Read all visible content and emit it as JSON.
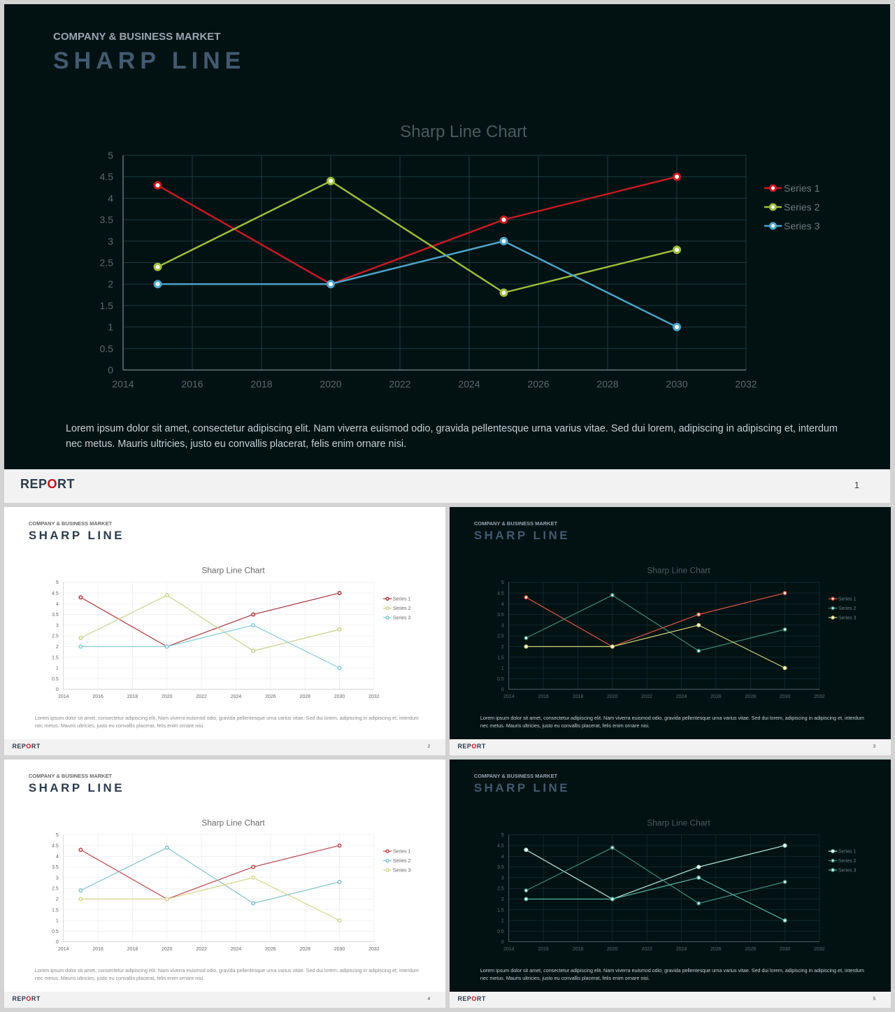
{
  "header": {
    "subtitle": "COMPANY & BUSINESS MARKET",
    "title": "SHARP LINE"
  },
  "description": "Lorem ipsum dolor sit amet, consectetur adipiscing elit. Nam viverra euismod odio, gravida pellentesque urna varius vitae. Sed dui lorem, adipiscing in adipiscing et, interdum nec metus. Mauris ultricies, justo eu convallis placerat, felis enim ornare nisi.",
  "footer": {
    "brand_before": "REP",
    "brand_accent": "O",
    "brand_after": "RT"
  },
  "slides": [
    {
      "page": "1",
      "theme": "dark",
      "line_colors": [
        "#cc1a22",
        "#9fbf3a",
        "#4fa6cc"
      ]
    },
    {
      "page": "2",
      "theme": "light",
      "line_colors": [
        "#a8333b",
        "#c8d18a",
        "#80cbd8"
      ]
    },
    {
      "page": "3",
      "theme": "dark",
      "line_colors": [
        "#e0584a",
        "#3f8c78",
        "#d4d47a"
      ]
    },
    {
      "page": "4",
      "theme": "light",
      "line_colors": [
        "#b8444c",
        "#7cc3cc",
        "#d4d48c"
      ]
    },
    {
      "page": "5",
      "theme": "dark",
      "line_colors": [
        "#b6f0e0",
        "#3e8c80",
        "#5ab8a8"
      ]
    }
  ],
  "chart_data": {
    "type": "line",
    "title": "Sharp Line Chart",
    "xlim": [
      2014,
      2032
    ],
    "ylim": [
      0,
      5
    ],
    "x_ticks": [
      "2014",
      "2016",
      "2018",
      "2020",
      "2022",
      "2024",
      "2026",
      "2028",
      "2030",
      "2032"
    ],
    "y_ticks": [
      "0",
      "0.5",
      "1",
      "1.5",
      "2",
      "2.5",
      "3",
      "3.5",
      "4",
      "4.5",
      "5"
    ],
    "grid": true,
    "legend": "right",
    "x": [
      2015,
      2020,
      2025,
      2030
    ],
    "series": [
      {
        "name": "Series 1",
        "values": [
          4.3,
          2,
          3.5,
          4.5
        ]
      },
      {
        "name": "Series 2",
        "values": [
          2.4,
          4.4,
          1.8,
          2.8
        ]
      },
      {
        "name": "Series 3",
        "values": [
          2,
          2,
          3,
          1
        ]
      }
    ]
  }
}
